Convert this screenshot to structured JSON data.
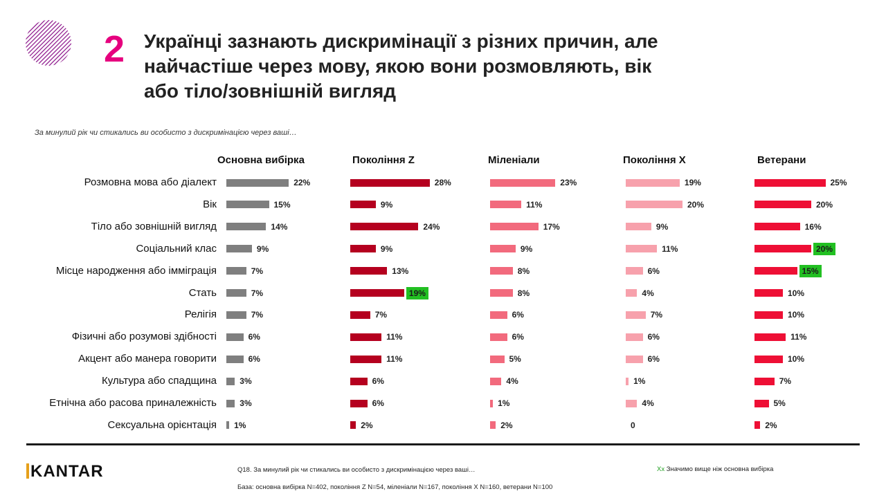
{
  "slide_number": "2",
  "title_lines": [
    "Українці зазнають дискримінації з різних причин, але",
    "найчастіше через мову, якою вони розмовляють, вік",
    "або тіло/зовнішній вигляд"
  ],
  "question": "За минулий рік чи стикались ви особисто з дискримінацією через ваші…",
  "footer": {
    "brand": "KANTAR",
    "q_note": "Q18. За минулий рік чи стикались ви особисто з дискримінацією через ваші…",
    "base_note": "База: основна вибірка N=402, покоління Z N=54, міленіали N=167, покоління X N=160, ветерани N=100",
    "legend_mark": "Xx",
    "legend_text": " Значимо вище ніж основна вибірка"
  },
  "chart_data": {
    "type": "bar",
    "orientation": "horizontal",
    "unit": "%",
    "categories": [
      "Розмовна мова або діалект",
      "Вік",
      "Тіло або зовнішній вигляд",
      "Соціальний клас",
      "Місце народження або імміграція",
      "Стать",
      "Релігія",
      "Фізичні або розумові здібності",
      "Акцент або манера говорити",
      "Культура або спадщина",
      "Етнічна або расова приналежність",
      "Сексуальна орієнтація"
    ],
    "series": [
      {
        "name": "Основна вибірка",
        "color": "#7f7f7f",
        "values": [
          22,
          15,
          14,
          9,
          7,
          7,
          7,
          6,
          6,
          3,
          3,
          1
        ],
        "labels": [
          "22%",
          "15%",
          "14%",
          "9%",
          "7%",
          "7%",
          "7%",
          "6%",
          "6%",
          "3%",
          "3%",
          "1%"
        ],
        "significant": []
      },
      {
        "name": "Покоління Z",
        "color": "#b5001f",
        "values": [
          28,
          9,
          24,
          9,
          13,
          19,
          7,
          11,
          11,
          6,
          6,
          2
        ],
        "labels": [
          "28%",
          "9%",
          "24%",
          "9%",
          "13%",
          "19%",
          "7%",
          "11%",
          "11%",
          "6%",
          "6%",
          "2%"
        ],
        "significant": [
          5
        ]
      },
      {
        "name": "Міленіали",
        "color": "#f26a7d",
        "values": [
          23,
          11,
          17,
          9,
          8,
          8,
          6,
          6,
          5,
          4,
          1,
          2
        ],
        "labels": [
          "23%",
          "11%",
          "17%",
          "9%",
          "8%",
          "8%",
          "6%",
          "6%",
          "5%",
          "4%",
          "1%",
          "2%"
        ],
        "significant": []
      },
      {
        "name": "Покоління X",
        "color": "#f7a1ac",
        "values": [
          19,
          20,
          9,
          11,
          6,
          4,
          7,
          6,
          6,
          1,
          4,
          0
        ],
        "labels": [
          "19%",
          "20%",
          "9%",
          "11%",
          "6%",
          "4%",
          "7%",
          "6%",
          "6%",
          "1%",
          "4%",
          "0"
        ],
        "significant": []
      },
      {
        "name": "Ветерани",
        "color": "#ee0f35",
        "values": [
          25,
          20,
          16,
          20,
          15,
          10,
          10,
          11,
          10,
          7,
          5,
          2
        ],
        "labels": [
          "25%",
          "20%",
          "16%",
          "20%",
          "15%",
          "10%",
          "10%",
          "11%",
          "10%",
          "7%",
          "5%",
          "2%"
        ],
        "significant": [
          3,
          4
        ]
      }
    ],
    "significance_color": "#22c022"
  }
}
